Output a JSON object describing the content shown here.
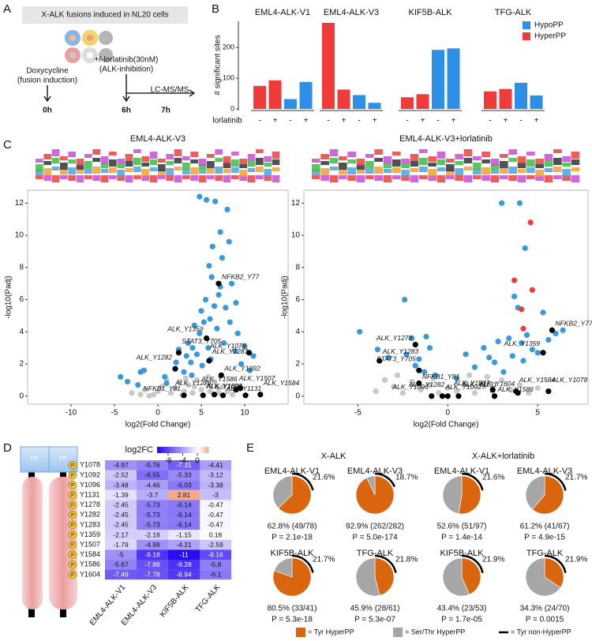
{
  "panels": [
    "A",
    "B",
    "C",
    "D",
    "E"
  ],
  "schematic": {
    "title": "X-ALK fusions induced in NL20 cells",
    "step1": "Doxycycline",
    "step1_note": "(fusion induction)",
    "step2": "+/-lorlatinib(30nM)",
    "step2_note": "(ALK-inhibition)",
    "step3": "LC-MS/MS",
    "times": [
      "0h",
      "6h",
      "7h"
    ]
  },
  "domain_schematic": {
    "domain_labels": [
      "FP",
      "FP"
    ],
    "site_marker": "P"
  },
  "chart_data": [
    {
      "type": "bar",
      "y_label": "# significant sites",
      "x_label": "lorlatinib",
      "categories": [
        "-",
        "+"
      ],
      "ylim": [
        0,
        285
      ],
      "yticks": [
        0,
        100,
        200
      ],
      "facets": [
        {
          "title": "EML4-ALK-V1",
          "series": [
            {
              "name": "HyperPP",
              "color": "#ef3b3a",
              "values": [
                75,
                93
              ]
            },
            {
              "name": "HypoPP",
              "color": "#2e8fe6",
              "values": [
                32,
                88
              ]
            }
          ]
        },
        {
          "title": "EML4-ALK-V3",
          "series": [
            {
              "name": "HyperPP",
              "color": "#ef3b3a",
              "values": [
                280,
                63
              ]
            },
            {
              "name": "HypoPP",
              "color": "#2e8fe6",
              "values": [
                45,
                20
              ]
            }
          ]
        },
        {
          "title": "KIF5B-ALK",
          "series": [
            {
              "name": "HyperPP",
              "color": "#ef3b3a",
              "values": [
                38,
                48
              ]
            },
            {
              "name": "HypoPP",
              "color": "#2e8fe6",
              "values": [
                192,
                197
              ]
            }
          ]
        },
        {
          "title": "TFG-ALK",
          "series": [
            {
              "name": "HyperPP",
              "color": "#ef3b3a",
              "values": [
                57,
                65
              ]
            },
            {
              "name": "HypoPP",
              "color": "#2e8fe6",
              "values": [
                85,
                44
              ]
            }
          ]
        }
      ]
    },
    {
      "type": "scatter",
      "title": "EML4-ALK-V3",
      "x_label": "log2(Fold Change)",
      "y_label": "-log10(Padj)",
      "xlim": [
        -15,
        15
      ],
      "ylim": [
        -0.5,
        12.8
      ],
      "xticks": [
        -10,
        -5,
        0,
        5,
        10
      ],
      "yticks": [
        0,
        2,
        4,
        6,
        8,
        10,
        12
      ],
      "series": [
        {
          "color": "#c8c8c8",
          "x": [
            -3,
            -1.5,
            -0.5,
            0,
            0.5,
            1.5,
            2,
            2.5,
            3,
            3.5,
            4,
            4.5,
            5,
            5.5,
            6,
            6.5,
            7,
            7.5,
            8,
            -2,
            1,
            3.2,
            5.8,
            6.9,
            2.8,
            -1,
            4.2,
            8.6
          ],
          "values": [
            0.2,
            0.4,
            0.1,
            0.3,
            0.6,
            0.2,
            0.5,
            0.9,
            0.3,
            0.7,
            0.2,
            1,
            0.4,
            0.8,
            0.3,
            0.9,
            0.2,
            0.6,
            0.3,
            0.1,
            1,
            1.1,
            1.2,
            0.5,
            0.05,
            0.02,
            0.6,
            0.1
          ]
        },
        {
          "color": "#3a9ad9",
          "x": [
            -4.3,
            -3.5,
            -2.3,
            -2,
            -1.6,
            0.8,
            1,
            2.1,
            2.4,
            3,
            3.3,
            3.8,
            3.5,
            4,
            4.2,
            4.5,
            4.8,
            5,
            5.1,
            5.3,
            5.5,
            5.6,
            5.8,
            6,
            6.2,
            6.3,
            6.5,
            6.6,
            6.8,
            7,
            7.2,
            7.4,
            7.6,
            7.8,
            8,
            8.3,
            8.5,
            8.9,
            9.2,
            9.6,
            10,
            10.6,
            11,
            4.8,
            7.2,
            6.1,
            3.9,
            9,
            8.2,
            5.9
          ],
          "values": [
            1.2,
            0.9,
            0.7,
            1.5,
            1.6,
            1.2,
            0.8,
            2.1,
            2.9,
            1.5,
            2.5,
            2.1,
            3.3,
            3,
            4.4,
            2.6,
            3.9,
            5.3,
            1.9,
            4.6,
            6,
            12.2,
            3,
            4.8,
            7.4,
            9.3,
            5.6,
            12.1,
            4.2,
            6.3,
            10.2,
            8.6,
            3.3,
            5.5,
            11.6,
            4.6,
            7,
            2.8,
            3.9,
            2,
            3.1,
            1.6,
            2.5,
            12.4,
            6.8,
            2.3,
            1.3,
            5.8,
            9.6,
            8.1
          ]
        },
        {
          "color": "#000000",
          "x": [
            7,
            5.6,
            2.4,
            10.5,
            5.9,
            2,
            7.3,
            9.5,
            9,
            3,
            5.2,
            6.5,
            7.5,
            10.1,
            11.8
          ],
          "values": [
            7,
            3.6,
            2.7,
            2.7,
            2.2,
            1.7,
            1.3,
            0.5,
            0.4,
            0.05,
            0.05,
            0.1,
            0.05,
            0.05,
            0.1
          ],
          "labels": [
            "NFKB2_Y77",
            "ALK_Y1359",
            "STAT3_Y705",
            "ALK_Y1078",
            "ALK_Y1283",
            "ALK_Y1282",
            "ALK_Y1092",
            "ALK_Y1586",
            "ALK_Y1507",
            "NFKB1_Y81",
            "ALK_Y1096",
            "ALK_Y1278",
            "ALK_Y1131",
            "ALK_Y1604",
            "ALK_Y1584"
          ]
        }
      ]
    },
    {
      "type": "scatter",
      "title": "EML4-ALK-V3+lorlatinib",
      "x_label": "log2(Fold Change)",
      "y_label": "-log10(Padj)",
      "xlim": [
        -8,
        7.8
      ],
      "ylim": [
        -0.5,
        12.8
      ],
      "xticks": [
        -5,
        0,
        5
      ],
      "yticks": [
        0,
        2,
        4,
        6,
        8,
        10,
        12
      ],
      "series": [
        {
          "color": "#c8c8c8",
          "x": [
            -4,
            -3,
            -2.5,
            -2,
            -1.5,
            -1,
            -0.5,
            0,
            0.5,
            1,
            1.5,
            2,
            2.5,
            3,
            3.5,
            4,
            4.5,
            5,
            -3.5,
            -2.8,
            1.2,
            -0.8,
            2.2
          ],
          "values": [
            0.3,
            0.6,
            0.2,
            0.9,
            0.4,
            0.7,
            0.2,
            0.5,
            0.3,
            0.8,
            0.2,
            0.6,
            0.3,
            1,
            0.4,
            0.7,
            0.2,
            0.5,
            1,
            1.3,
            1.3,
            1.1,
            1.2
          ]
        },
        {
          "color": "#3a9ad9",
          "x": [
            -4.9,
            -3.9,
            -3.3,
            -2.4,
            -2.3,
            -2,
            -1.8,
            -1.6,
            -1.3,
            -1,
            -0.7,
            0.5,
            1,
            1.5,
            2,
            2.3,
            2.6,
            3,
            3.1,
            3.4,
            3.6,
            3.9,
            4,
            4.1,
            4.2,
            4.3,
            4.4,
            4.7,
            5,
            5.3,
            5.6,
            6,
            6.4,
            -1.2,
            2.8,
            3.7
          ],
          "values": [
            4,
            2.9,
            2.4,
            6,
            2.6,
            3.6,
            1.9,
            2.3,
            1.5,
            3,
            1.3,
            1.1,
            2.6,
            1.8,
            3,
            2.4,
            2.1,
            12,
            1.5,
            3.6,
            2.5,
            5.5,
            12,
            3.3,
            2.2,
            9.2,
            3.8,
            2.9,
            2.7,
            5.2,
            3.5,
            3.9,
            4.1,
            3.7,
            3.4,
            6.2
          ]
        },
        {
          "color": "#ef3b3a",
          "x": [
            3.7,
            4.1,
            4.6,
            4.7,
            4.2
          ],
          "values": [
            7.2,
            5.4,
            10.8,
            6.6,
            4.2
          ]
        },
        {
          "color": "#000000",
          "x": [
            5.8,
            5.3,
            0.6,
            -1.8,
            -3.8,
            -1.6,
            -1.6,
            3.9,
            3.8,
            2.5,
            -0.3,
            0,
            2.6,
            -0.9,
            5.6
          ],
          "values": [
            4.1,
            2.7,
            0,
            3.2,
            2.2,
            1.6,
            0.8,
            0.2,
            0.3,
            0.4,
            0,
            0,
            0,
            0,
            0.3
          ],
          "labels": [
            "NFKB2_Y77",
            "ALK_Y1359",
            "ALK_Y1131",
            "ALK_Y1278",
            "ALK_Y1283",
            "STAT3_Y705",
            "NFKB1_Y81",
            "ALK_Y1604",
            "ALK_Y1584",
            "ALK_Y1507",
            "ALK_Y1092",
            "ALK_Y1282",
            "ALK_Y1586",
            "ALK_Y1096",
            "ALK_Y1078"
          ]
        }
      ]
    },
    {
      "type": "heatmap",
      "colorbar_title": "log2FC",
      "zlim": [
        -11,
        3
      ],
      "colorbar_ticks": [
        -8,
        -4,
        0
      ],
      "colors": [
        "#2a0cf0",
        "#ffffff",
        "#f4a582"
      ],
      "rows": [
        "Y1078",
        "Y1092",
        "Y1096",
        "Y1131",
        "Y1278",
        "Y1282",
        "Y1283",
        "Y1359",
        "Y1507",
        "Y1584",
        "Y1586",
        "Y1604"
      ],
      "columns": [
        "EML4-ALK-V1",
        "EML4-ALK-V3",
        "KIF5B-ALK",
        "TFG-ALK"
      ],
      "values": [
        [
          -4.97,
          -5.76,
          -7.31,
          -4.41
        ],
        [
          -2.52,
          -6.55,
          -5.33,
          -3.12
        ],
        [
          -3.48,
          -4.46,
          -6.03,
          -3.38
        ],
        [
          -1.39,
          -3.7,
          2.81,
          -3
        ],
        [
          -2.45,
          -5.73,
          -6.14,
          -0.47
        ],
        [
          -2.45,
          -5.73,
          -6.14,
          -0.47
        ],
        [
          -2.45,
          -5.73,
          -6.14,
          -0.47
        ],
        [
          -2.17,
          -2.18,
          -1.15,
          0.18
        ],
        [
          -1.79,
          -4.99,
          -4.21,
          -2.59
        ],
        [
          -5,
          -9.18,
          -11,
          -8.16
        ],
        [
          -5.67,
          -7.88,
          -9.28,
          -5.8
        ],
        [
          -7.49,
          -7.78,
          -8.94,
          -6.1
        ]
      ]
    },
    {
      "type": "pie",
      "colors": [
        "#d9650f",
        "#a6a6a6",
        "#000000"
      ],
      "legend": [
        "= Tyr HyperPP",
        "= Ser/Thr HyperPP",
        "= Tyr non-HyperPP"
      ],
      "groups": [
        {
          "title": "X-ALK",
          "pies": [
            {
              "title": "EML4-ALK-V1",
              "values": [
                62.8,
                37.2
              ],
              "label": "62.8% (49/78)",
              "p": "P = 2.1e-18",
              "arc": 21.6,
              "arc_label": "21.6%"
            },
            {
              "title": "EML4-ALK-V3",
              "values": [
                92.9,
                7.1
              ],
              "label": "92.9% (262/282)",
              "p": "P = 5.0e-174",
              "arc": 18.7,
              "arc_label": "18.7%"
            },
            {
              "title": "KIF5B-ALK",
              "values": [
                80.5,
                19.5
              ],
              "label": "80.5% (33/41)",
              "p": "P = 5.3e-18",
              "arc": 21.7,
              "arc_label": "21.7%"
            },
            {
              "title": "TFG-ALK",
              "values": [
                45.9,
                54.1
              ],
              "label": "45.9% (28/61)",
              "p": "P = 5.3e-07",
              "arc": 21.8,
              "arc_label": "21.8%"
            }
          ]
        },
        {
          "title": "X-ALK+lorlatinib",
          "pies": [
            {
              "title": "EML4-ALK-V1",
              "values": [
                52.6,
                47.4
              ],
              "label": "52.6% (51/97)",
              "p": "P = 1.4e-14",
              "arc": 21.6,
              "arc_label": "21.6%"
            },
            {
              "title": "EML4-ALK-V3",
              "values": [
                61.2,
                38.8
              ],
              "label": "61.2% (41/67)",
              "p": "P = 4.9e-15",
              "arc": 21.7,
              "arc_label": "21.7%"
            },
            {
              "title": "KIF5B-ALK",
              "values": [
                43.4,
                56.6
              ],
              "label": "43.4% (23/53)",
              "p": "P = 1.7e-05",
              "arc": 21.9,
              "arc_label": "21.9%"
            },
            {
              "title": "TFG-ALK",
              "values": [
                34.3,
                65.7
              ],
              "label": "34.3% (24/70)",
              "p": "P = 0.0015",
              "arc": 21.9,
              "arc_label": "21.9%"
            }
          ]
        }
      ]
    }
  ]
}
